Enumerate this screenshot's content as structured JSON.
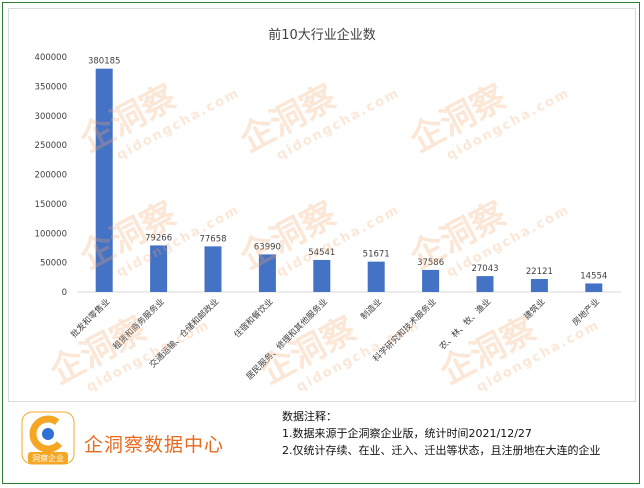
{
  "chart_data": {
    "type": "bar",
    "title": "前10大行业企业数",
    "categories": [
      "批发和零售业",
      "租赁和商务服务业",
      "交通运输、仓储和邮政业",
      "住宿和餐饮业",
      "居民服务、修理和其他服务业",
      "制造业",
      "科学研究和技术服务业",
      "农、林、牧、渔业",
      "建筑业",
      "房地产业"
    ],
    "values": [
      380185,
      79266,
      77658,
      63990,
      54541,
      51671,
      37586,
      27043,
      22121,
      14554
    ],
    "ylim": [
      0,
      400000
    ],
    "yticks": [
      0,
      50000,
      100000,
      150000,
      200000,
      250000,
      300000,
      350000,
      400000
    ],
    "grid": false,
    "bar_color": "#4472c4"
  },
  "watermark": {
    "text": "企洞察",
    "sub": "qidongcha.com"
  },
  "footer": {
    "logo_badge": "洞察企业",
    "brand": "企洞察数据中心",
    "notes_title": "数据注释：",
    "note1": "1.数据来源于企洞察企业版，统计时间2021/12/27",
    "note2": "2.仅统计存续、在业、迁入、迁出等状态，且注册地在大连的企业"
  },
  "colors": {
    "brand_orange": "#e86a1f",
    "frame_green": "#2e7d32"
  }
}
